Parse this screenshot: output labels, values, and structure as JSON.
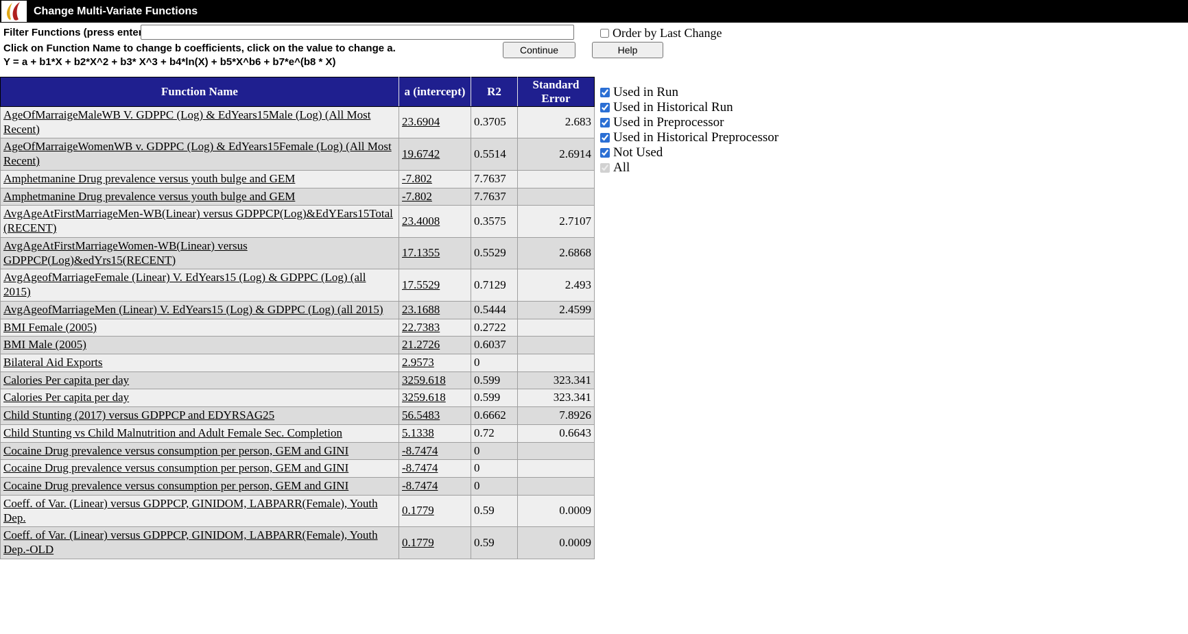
{
  "header": {
    "title": "Change Multi-Variate Functions"
  },
  "filter": {
    "label": "Filter Functions (press enter):",
    "value": ""
  },
  "order_checkbox": {
    "label": "Order by Last Change",
    "checked": false
  },
  "instructions": "Click on Function Name to change b coefficients, click on the value to change a.",
  "formula": "Y = a + b1*X + b2*X^2 + b3* X^3 + b4*ln(X) + b5*X^b6 + b7*e^(b8 * X)",
  "buttons": {
    "continue_label": "Continue",
    "help_label": "Help"
  },
  "table": {
    "columns": [
      "Function Name",
      "a (intercept)",
      "R2",
      "Standard Error"
    ],
    "rows": [
      {
        "name": "AgeOfMarraigeMaleWB V. GDPPC (Log) & EdYears15Male (Log) (All Most Recent)",
        "a": "23.6904",
        "r2": "0.3705",
        "se": "2.683"
      },
      {
        "name": "AgeOfMarraigeWomenWB v. GDPPC (Log) & EdYears15Female (Log) (All Most Recent)",
        "a": "19.6742",
        "r2": "0.5514",
        "se": "2.6914"
      },
      {
        "name": "Amphetmanine Drug prevalence versus youth bulge and GEM",
        "a": "-7.802",
        "r2": "7.7637",
        "se": ""
      },
      {
        "name": "Amphetmanine Drug prevalence versus youth bulge and GEM",
        "a": "-7.802",
        "r2": "7.7637",
        "se": ""
      },
      {
        "name": "AvgAgeAtFirstMarriageMen-WB(Linear) versus GDPPCP(Log)&EdYEars15Total (RECENT)",
        "a": "23.4008",
        "r2": "0.3575",
        "se": "2.7107"
      },
      {
        "name": "AvgAgeAtFirstMarriageWomen-WB(Linear) versus GDPPCP(Log)&edYrs15(RECENT)",
        "a": "17.1355",
        "r2": "0.5529",
        "se": "2.6868"
      },
      {
        "name": "AvgAgeofMarriageFemale (Linear) V. EdYears15 (Log) & GDPPC (Log) (all 2015)",
        "a": "17.5529",
        "r2": "0.7129",
        "se": "2.493"
      },
      {
        "name": "AvgAgeofMarriageMen (Linear) V. EdYears15 (Log) & GDPPC (Log) (all 2015)",
        "a": "23.1688",
        "r2": "0.5444",
        "se": "2.4599"
      },
      {
        "name": "BMI Female (2005)",
        "a": "22.7383",
        "r2": "0.2722",
        "se": ""
      },
      {
        "name": "BMI Male (2005)",
        "a": "21.2726",
        "r2": "0.6037",
        "se": ""
      },
      {
        "name": "Bilateral Aid Exports",
        "a": "2.9573",
        "r2": "0",
        "se": ""
      },
      {
        "name": "Calories Per capita per day",
        "a": "3259.618",
        "r2": "0.599",
        "se": "323.341"
      },
      {
        "name": "Calories Per capita per day",
        "a": "3259.618",
        "r2": "0.599",
        "se": "323.341"
      },
      {
        "name": "Child Stunting (2017) versus GDPPCP and EDYRSAG25",
        "a": "56.5483",
        "r2": "0.6662",
        "se": "7.8926"
      },
      {
        "name": "Child Stunting vs Child Malnutrition and Adult Female Sec. Completion",
        "a": "5.1338",
        "r2": "0.72",
        "se": "0.6643"
      },
      {
        "name": "Cocaine Drug prevalence versus consumption per person, GEM and GINI",
        "a": "-8.7474",
        "r2": "0",
        "se": ""
      },
      {
        "name": "Cocaine Drug prevalence versus consumption per person, GEM and GINI",
        "a": "-8.7474",
        "r2": "0",
        "se": ""
      },
      {
        "name": "Cocaine Drug prevalence versus consumption per person, GEM and GINI",
        "a": "-8.7474",
        "r2": "0",
        "se": ""
      },
      {
        "name": "Coeff. of Var. (Linear) versus GDPPCP, GINIDOM, LABPARR(Female), Youth Dep.",
        "a": "0.1779",
        "r2": "0.59",
        "se": "0.0009"
      },
      {
        "name": "Coeff. of Var. (Linear) versus GDPPCP, GINIDOM, LABPARR(Female), Youth Dep.-OLD",
        "a": "0.1779",
        "r2": "0.59",
        "se": "0.0009"
      }
    ]
  },
  "filters_panel": {
    "items": [
      {
        "label": "Used in Run",
        "checked": true,
        "disabled": false
      },
      {
        "label": "Used in Historical Run",
        "checked": true,
        "disabled": false
      },
      {
        "label": "Used in Preprocessor",
        "checked": true,
        "disabled": false
      },
      {
        "label": "Used in Historical Preprocessor",
        "checked": true,
        "disabled": false
      },
      {
        "label": "Not Used",
        "checked": true,
        "disabled": false
      },
      {
        "label": "All",
        "checked": true,
        "disabled": true
      }
    ]
  },
  "icons": {
    "logo": "ifs-flame-logo"
  },
  "colors": {
    "titlebar_bg": "#000000",
    "table_header_bg": "#1f1f8f",
    "row_light": "#efefef",
    "row_dark": "#dcdcdc",
    "checkbox_accent": "#2b6fd4",
    "logo_yellow": "#e0a818",
    "logo_red": "#b0201e"
  }
}
